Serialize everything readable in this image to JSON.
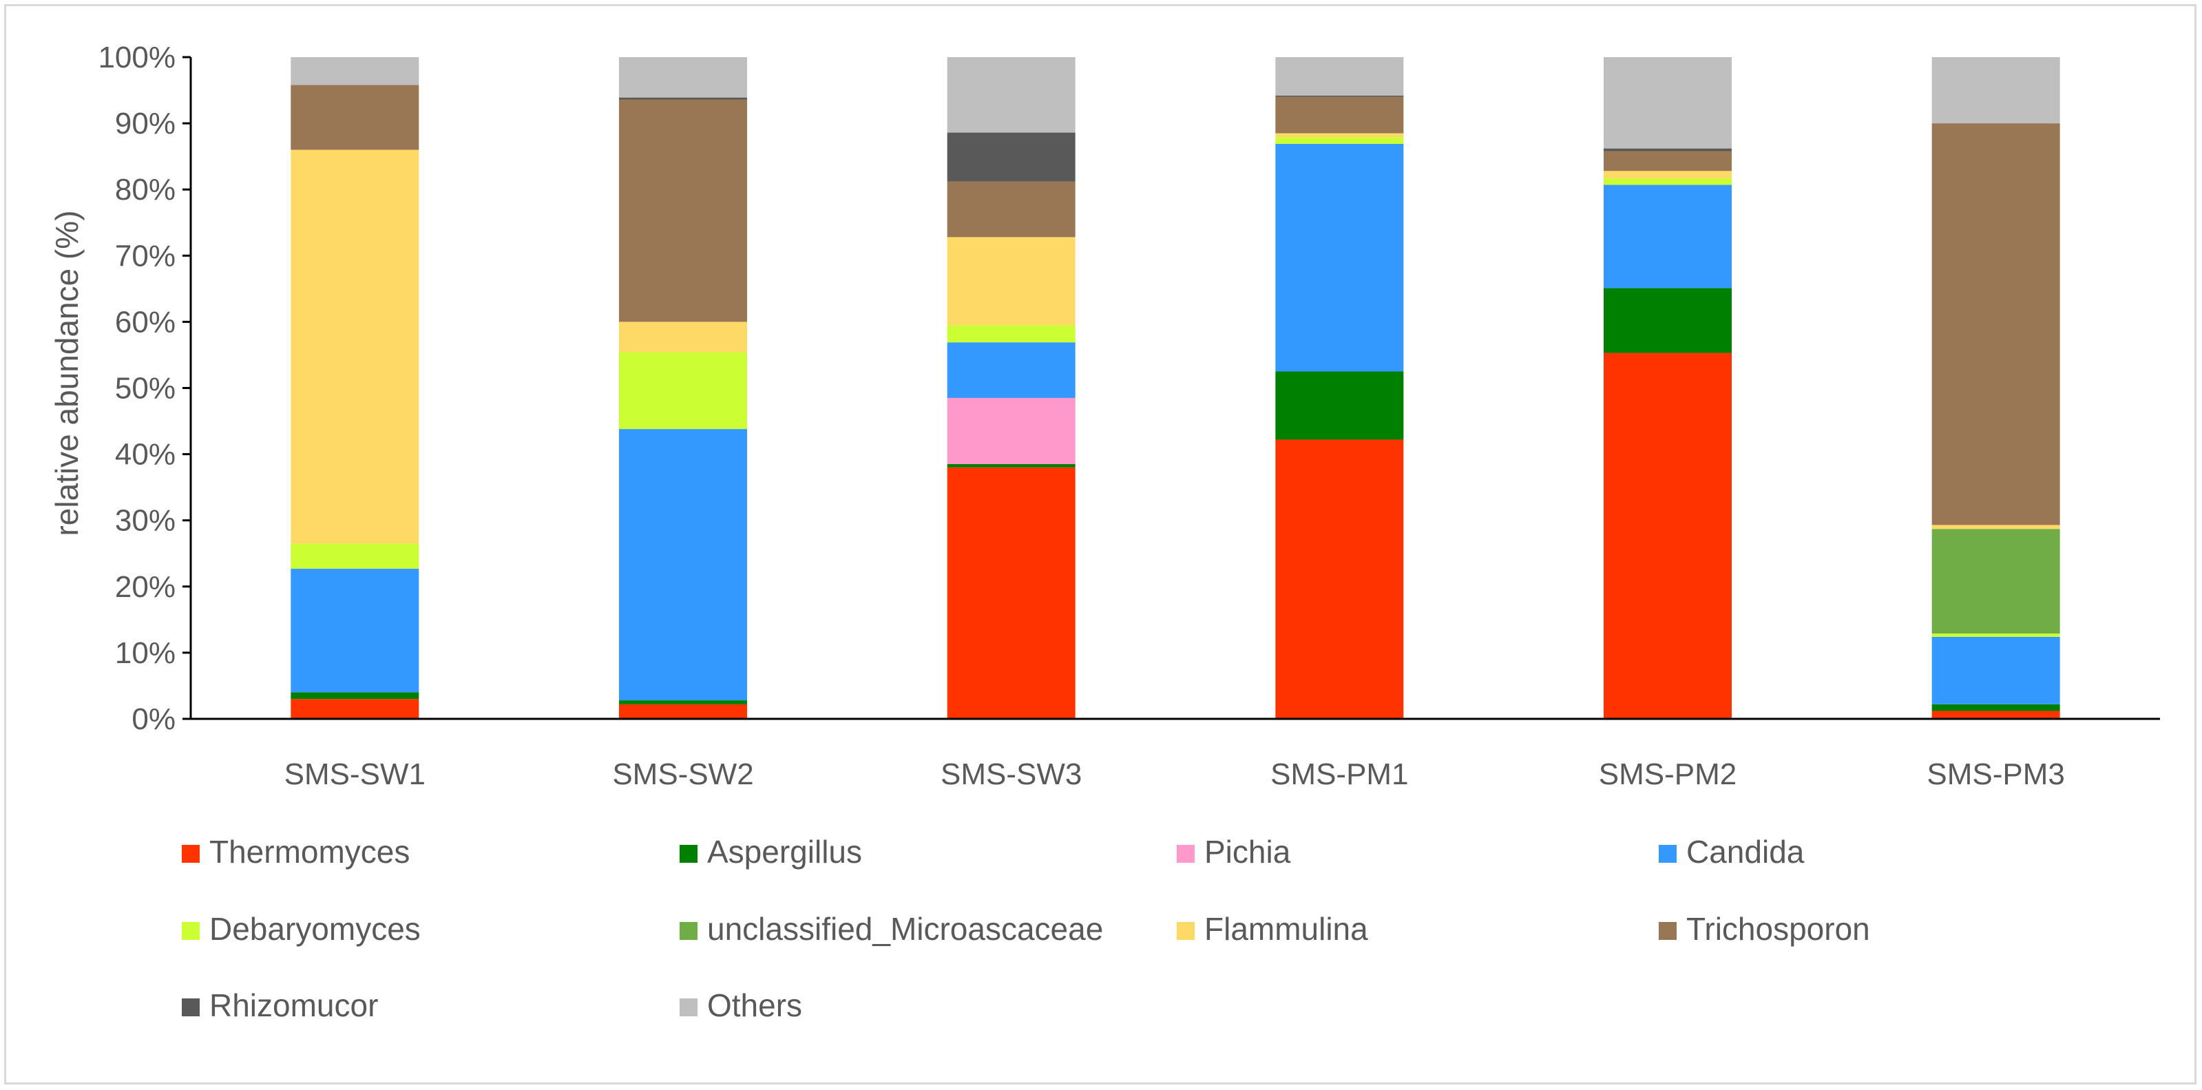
{
  "chart_data": {
    "type": "bar",
    "stacked": true,
    "title": "",
    "xlabel": "",
    "ylabel": "relative abundance (%)",
    "ylim": [
      0,
      100
    ],
    "yticks": [
      "0%",
      "10%",
      "20%",
      "30%",
      "40%",
      "50%",
      "60%",
      "70%",
      "80%",
      "90%",
      "100%"
    ],
    "legend_position": "bottom",
    "categories": [
      "SMS-SW1",
      "SMS-SW2",
      "SMS-SW3",
      "SMS-PM1",
      "SMS-PM2",
      "SMS-PM3"
    ],
    "series": [
      {
        "name": "Thermomyces",
        "color": "#ff3300",
        "values": [
          3.0,
          2.2,
          38.0,
          42.2,
          55.3,
          1.2
        ]
      },
      {
        "name": "Aspergillus",
        "color": "#008000",
        "values": [
          1.0,
          0.6,
          0.5,
          10.3,
          9.8,
          1.0
        ]
      },
      {
        "name": "Pichia",
        "color": "#ff99cc",
        "values": [
          0,
          0,
          10.0,
          0,
          0,
          0
        ]
      },
      {
        "name": "Candida",
        "color": "#3399ff",
        "values": [
          18.7,
          41.0,
          8.4,
          34.4,
          15.6,
          10.2
        ]
      },
      {
        "name": "Debaryomyces",
        "color": "#ccff33",
        "values": [
          3.8,
          11.6,
          2.6,
          1.0,
          1.0,
          0.5
        ]
      },
      {
        "name": "unclassified_Microascaceae",
        "color": "#70ad47",
        "values": [
          0,
          0,
          0,
          0,
          0,
          15.8
        ]
      },
      {
        "name": "Flammulina",
        "color": "#ffd966",
        "values": [
          59.5,
          4.6,
          13.3,
          0.6,
          1.1,
          0.6
        ]
      },
      {
        "name": "Trichosporon",
        "color": "#997755",
        "values": [
          9.8,
          33.6,
          8.4,
          5.5,
          3.0,
          60.7
        ]
      },
      {
        "name": "Rhizomucor",
        "color": "#595959",
        "values": [
          0,
          0.3,
          7.4,
          0.2,
          0.4,
          0
        ]
      },
      {
        "name": "Others",
        "color": "#bfbfbf",
        "values": [
          4.2,
          6.1,
          11.4,
          5.8,
          13.8,
          10.0
        ]
      }
    ]
  }
}
